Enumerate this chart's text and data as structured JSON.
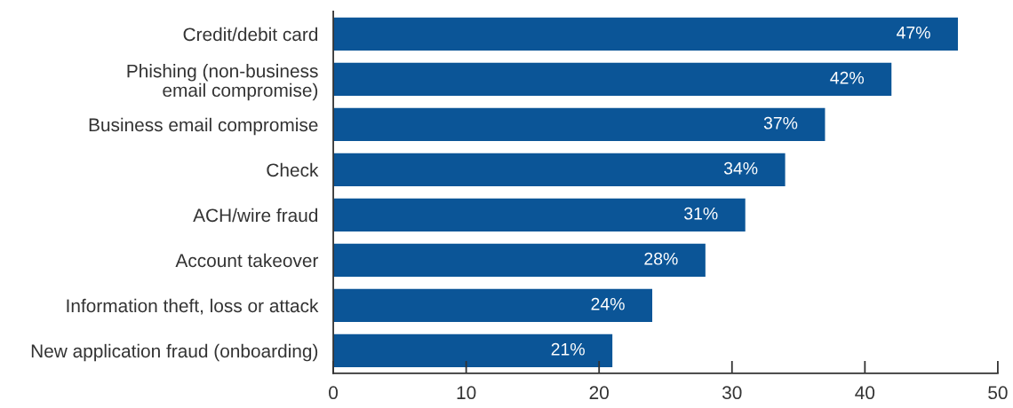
{
  "chart_data": {
    "type": "bar",
    "orientation": "horizontal",
    "categories": [
      "Credit/debit card",
      "Phishing (non-business\nemail compromise)",
      "Business email compromise",
      "Check",
      "ACH/wire fraud",
      "Account takeover",
      "Information theft, loss or attack",
      "New application fraud (onboarding)"
    ],
    "values": [
      47,
      42,
      37,
      34,
      31,
      28,
      24,
      21
    ],
    "value_labels": [
      "47%",
      "42%",
      "37%",
      "34%",
      "31%",
      "28%",
      "24%",
      "21%"
    ],
    "color": "#0b5597",
    "xlim": [
      0,
      50
    ],
    "xticks": [
      0,
      10,
      20,
      30,
      40,
      50
    ],
    "grid": false,
    "legend": false
  }
}
